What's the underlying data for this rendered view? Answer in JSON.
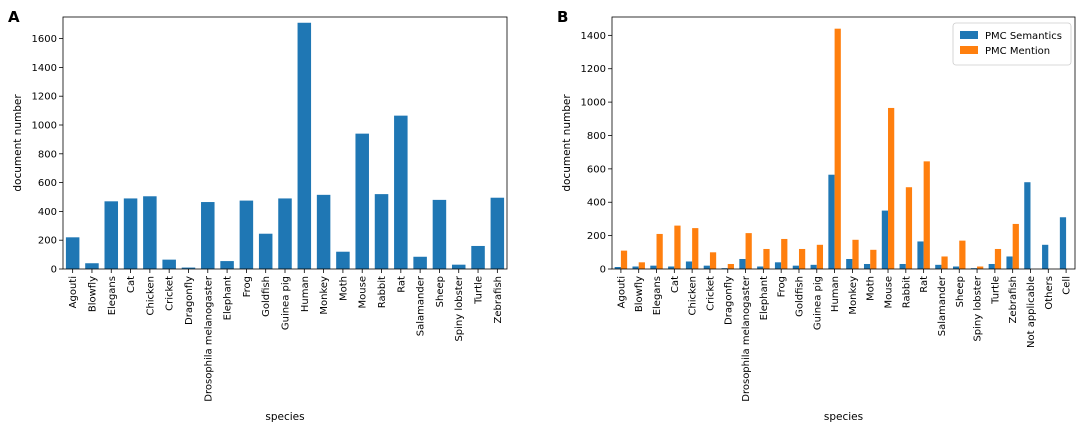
{
  "chart_data": [
    {
      "panel_label": "A",
      "type": "bar",
      "xlabel": "species",
      "ylabel": "document number",
      "ylim": [
        0,
        1750
      ],
      "yticks": [
        0,
        200,
        400,
        600,
        800,
        1000,
        1200,
        1400,
        1600
      ],
      "categories": [
        "Agouti",
        "Blowfly",
        "Elegans",
        "Cat",
        "Chicken",
        "Cricket",
        "Dragonfly",
        "Drosophila melanogaster",
        "Elephant",
        "Frog",
        "Goldfish",
        "Guinea pig",
        "Human",
        "Monkey",
        "Moth",
        "Mouse",
        "Rabbit",
        "Rat",
        "Salamander",
        "Sheep",
        "Spiny lobster",
        "Turtle",
        "Zebrafish"
      ],
      "series": [
        {
          "name": "document number",
          "color": "#1f77b4",
          "values": [
            220,
            40,
            470,
            490,
            505,
            65,
            10,
            465,
            55,
            475,
            245,
            490,
            1710,
            515,
            120,
            940,
            520,
            1065,
            85,
            480,
            30,
            160,
            495
          ]
        }
      ]
    },
    {
      "panel_label": "B",
      "type": "bar",
      "xlabel": "species",
      "ylabel": "document number",
      "ylim": [
        0,
        1510
      ],
      "yticks": [
        0,
        200,
        400,
        600,
        800,
        1000,
        1200,
        1400
      ],
      "legend_position": "top-right",
      "categories": [
        "Agouti",
        "Blowfly",
        "Elegans",
        "Cat",
        "Chicken",
        "Cricket",
        "Dragonfly",
        "Drosophila melanogaster",
        "Elephant",
        "Frog",
        "Goldfish",
        "Guinea pig",
        "Human",
        "Monkey",
        "Moth",
        "Mouse",
        "Rabbit",
        "Rat",
        "Salamander",
        "Sheep",
        "Spiny lobster",
        "Turtle",
        "Zebrafish",
        "Not applicable",
        "Others",
        "Cell"
      ],
      "series": [
        {
          "name": "PMC Semantics",
          "color": "#1f77b4",
          "values": [
            12,
            15,
            20,
            15,
            45,
            20,
            5,
            60,
            15,
            40,
            20,
            25,
            565,
            60,
            30,
            350,
            30,
            165,
            25,
            15,
            5,
            30,
            75,
            520,
            145,
            310
          ]
        },
        {
          "name": "PMC Mention",
          "color": "#ff7f0e",
          "values": [
            110,
            40,
            210,
            260,
            245,
            100,
            30,
            215,
            120,
            180,
            120,
            145,
            1440,
            175,
            115,
            965,
            490,
            645,
            75,
            170,
            15,
            120,
            270,
            0,
            0,
            0
          ]
        }
      ]
    }
  ]
}
